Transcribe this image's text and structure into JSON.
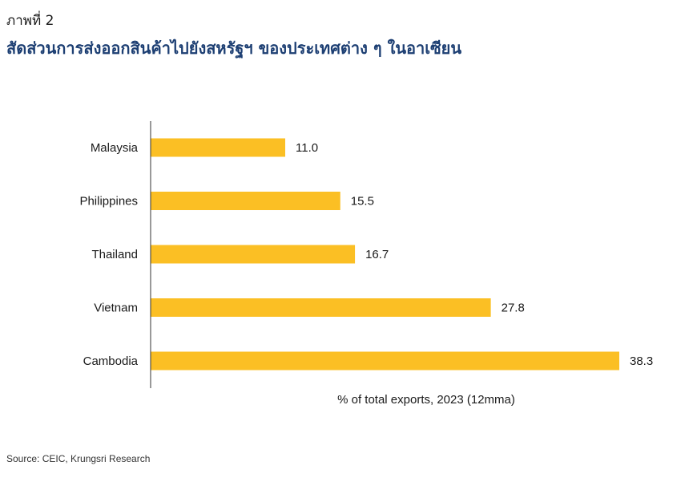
{
  "figure_label": "ภาพที่ 2",
  "title": "สัดส่วนการส่งออกสินค้าไปยังสหรัฐฯ ของประเทศต่าง ๆ ในอาเซียน",
  "source": "Source: CEIC, Krungsri Research",
  "colors": {
    "bar": "#FBBF24",
    "axis": "#333333",
    "title": "#1D3F73"
  },
  "chart_data": {
    "type": "bar",
    "orientation": "horizontal",
    "categories": [
      "Malaysia",
      "Philippines",
      "Thailand",
      "Vietnam",
      "Cambodia"
    ],
    "values": [
      11.0,
      15.5,
      16.7,
      27.8,
      38.3
    ],
    "value_labels": [
      "11.0",
      "15.5",
      "16.7",
      "27.8",
      "38.3"
    ],
    "xlabel": "% of total exports, 2023 (12mma)",
    "ylabel": "",
    "xlim": [
      0,
      38.3
    ],
    "grid": false,
    "legend": "none"
  }
}
